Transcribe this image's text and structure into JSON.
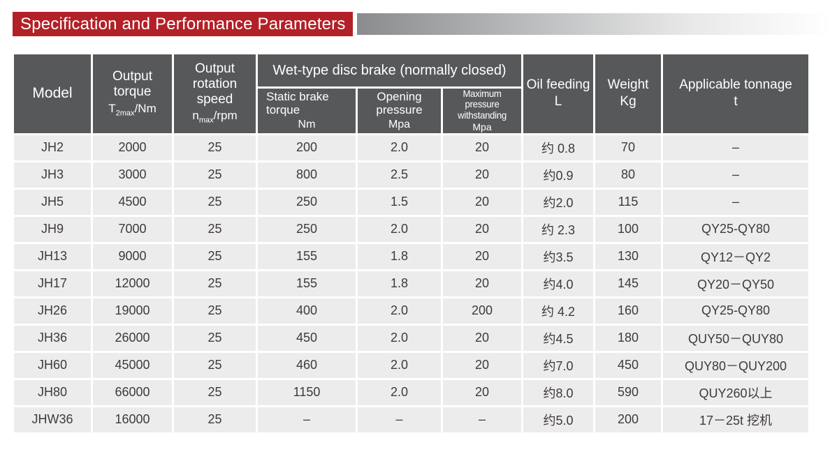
{
  "banner": {
    "title": "Specification and Performance Parameters"
  },
  "colors": {
    "accent_red": "#b22127",
    "header_gray": "#57585a",
    "row_bg": "#edecec",
    "row_text": "#3e3a38",
    "gradient_bar_start": "#8a8b8d",
    "gradient_bar_end": "#ffffff"
  },
  "table": {
    "header": {
      "model": "Model",
      "output_torque": {
        "line1": "Output",
        "line2": "torque",
        "sym_base": "T",
        "sym_sub": "2max",
        "sym_rest": "/Nm"
      },
      "output_speed": {
        "line1": "Output",
        "line2": "rotation",
        "line3": "speed",
        "sym_base": "n",
        "sym_sub": "max",
        "sym_rest": "/rpm"
      },
      "brake_group": "Wet-type disc brake (normally closed)",
      "static_brake": {
        "line1": "Static brake",
        "line2": "torque",
        "unit": "Nm"
      },
      "opening_pressure": {
        "line1": "Opening",
        "line2": "pressure",
        "unit": "Mpa"
      },
      "max_pressure": {
        "line1": "Maximum pressure",
        "line2": "withstanding",
        "unit": "Mpa"
      },
      "oil_feeding": {
        "label": "Oil feeding",
        "unit": "L"
      },
      "weight": {
        "label": "Weight",
        "unit": "Kg"
      },
      "tonnage": {
        "label": "Applicable tonnage",
        "unit": "t"
      }
    },
    "rows": [
      [
        "JH2",
        "2000",
        "25",
        "200",
        "2.0",
        "20",
        "约 0.8",
        "70",
        "–"
      ],
      [
        "JH3",
        "3000",
        "25",
        "800",
        "2.5",
        "20",
        "约0.9",
        "80",
        "–"
      ],
      [
        "JH5",
        "4500",
        "25",
        "250",
        "1.5",
        "20",
        "约2.0",
        "115",
        "–"
      ],
      [
        "JH9",
        "7000",
        "25",
        "250",
        "2.0",
        "20",
        "约 2.3",
        "100",
        "QY25-QY80"
      ],
      [
        "JH13",
        "9000",
        "25",
        "155",
        "1.8",
        "20",
        "约3.5",
        "130",
        "QY12－QY2"
      ],
      [
        "JH17",
        "12000",
        "25",
        "155",
        "1.8",
        "20",
        "约4.0",
        "145",
        "QY20－QY50"
      ],
      [
        "JH26",
        "19000",
        "25",
        "400",
        "2.0",
        "200",
        "约 4.2",
        "160",
        "QY25-QY80"
      ],
      [
        "JH36",
        "26000",
        "25",
        "450",
        "2.0",
        "20",
        "约4.5",
        "180",
        "QUY50－QUY80"
      ],
      [
        "JH60",
        "45000",
        "25",
        "460",
        "2.0",
        "20",
        "约7.0",
        "450",
        "QUY80－QUY200"
      ],
      [
        "JH80",
        "66000",
        "25",
        "1150",
        "2.0",
        "20",
        "约8.0",
        "590",
        "QUY260以上"
      ],
      [
        "JHW36",
        "16000",
        "25",
        "–",
        "–",
        "–",
        "约5.0",
        "200",
        "17－25t 挖机"
      ]
    ]
  }
}
